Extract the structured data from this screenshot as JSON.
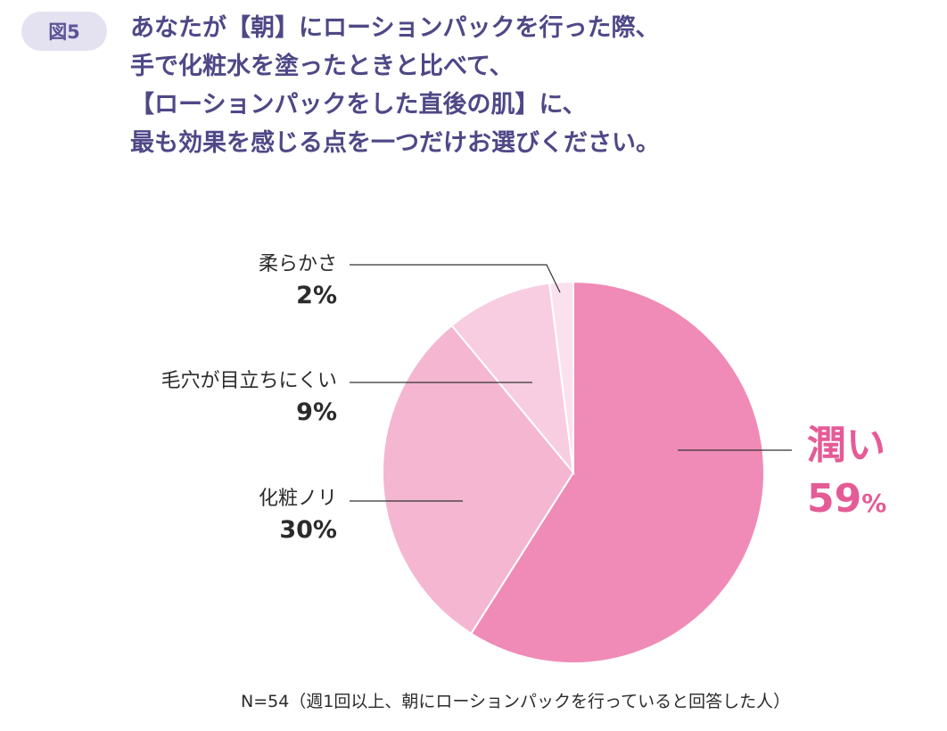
{
  "figure_label": "図5",
  "question_lines": [
    "あなたが【朝】にローションパックを行った際、",
    "手で化粧水を塗ったときと比べて、",
    "【ローションパックをした直後の肌】に、",
    "最も効果を感じる点を一つだけお選びください。"
  ],
  "chart_data": {
    "type": "pie",
    "title": "",
    "start": "12 o'clock, clockwise",
    "slices": [
      {
        "label": "潤い",
        "value": 59,
        "value_text": "59",
        "unit": "%",
        "color": "#ef8bb6"
      },
      {
        "label": "化粧ノリ",
        "value": 30,
        "value_text": "30%",
        "color": "#f4b6d1"
      },
      {
        "label": "毛穴が目立ちにくい",
        "value": 9,
        "value_text": "9%",
        "color": "#f8cde1"
      },
      {
        "label": "柔らかさ",
        "value": 2,
        "value_text": "2%",
        "color": "#fbe1ed"
      }
    ]
  },
  "colors": {
    "highlight_text": "#e45b96",
    "question_text": "#4e4887",
    "badge_bg": "#e4e1f1",
    "leader_line": "#333333"
  },
  "note": "N=54（週1回以上、朝にローションパックを行っていると回答した人）"
}
